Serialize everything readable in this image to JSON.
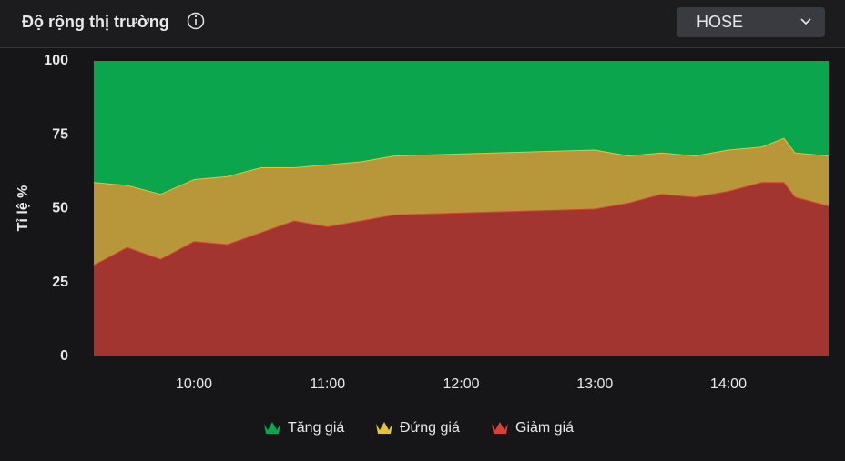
{
  "header": {
    "title": "Độ rộng thị trường",
    "dropdown": "HOSE"
  },
  "chart_data": {
    "type": "stacked_area",
    "y_label": "Tỉ lệ %",
    "x": [
      "09:15",
      "09:30",
      "09:45",
      "10:00",
      "10:15",
      "10:30",
      "10:45",
      "11:00",
      "11:15",
      "11:30",
      "13:00",
      "13:15",
      "13:30",
      "13:45",
      "14:00",
      "14:15",
      "14:25",
      "14:30",
      "14:45"
    ],
    "series": [
      {
        "name": "Tăng giá",
        "color": "#0aa54d",
        "values": [
          41,
          42,
          45,
          40,
          39,
          36,
          36,
          35,
          34,
          32,
          30,
          32,
          31,
          32,
          30,
          29,
          26,
          31,
          32
        ]
      },
      {
        "name": "Đứng giá",
        "color": "#b8963a",
        "line_color": "#e3c33c",
        "values": [
          28,
          21,
          22,
          21,
          23,
          22,
          18,
          21,
          20,
          20,
          20,
          16,
          14,
          14,
          14,
          12,
          15,
          15,
          17
        ]
      },
      {
        "name": "Giảm giá",
        "color": "#a33530",
        "line_color": "#d8413a",
        "values": [
          31,
          37,
          33,
          39,
          38,
          42,
          46,
          44,
          46,
          48,
          50,
          52,
          55,
          54,
          56,
          59,
          59,
          54,
          51
        ]
      }
    ],
    "xlim": [
      "09:15",
      "14:45"
    ],
    "xticks": [
      "10:00",
      "11:00",
      "12:00",
      "13:00",
      "14:00"
    ],
    "ylim": [
      0,
      100
    ],
    "yticks": [
      0,
      25,
      50,
      75,
      100
    ],
    "grid": false,
    "legend": "bottom"
  }
}
